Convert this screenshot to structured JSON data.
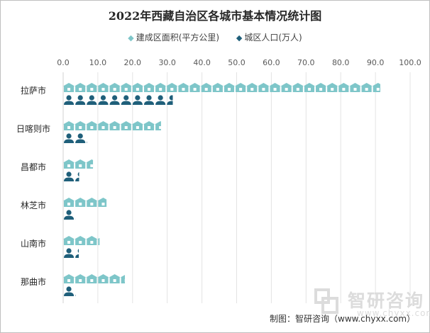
{
  "chart_data": {
    "type": "bar",
    "title": "2022年西藏自治区各城市基本情况统计图",
    "categories": [
      "拉萨市",
      "日喀则市",
      "昌都市",
      "林芝市",
      "山南市",
      "那曲市"
    ],
    "series": [
      {
        "name": "建成区面积(平方公里)",
        "values": [
          91.4,
          28.2,
          8.6,
          12.5,
          10.5,
          17.8
        ],
        "color": "#7ec6c9",
        "icon": "house-icon"
      },
      {
        "name": "城区人口(万人)",
        "values": [
          31.6,
          6.9,
          4.6,
          3.5,
          4.5,
          3.6
        ],
        "color": "#1f5f7a",
        "icon": "person-icon"
      }
    ],
    "xlim": [
      0,
      100
    ],
    "xticks": [
      "0.0",
      "10.0",
      "20.0",
      "30.0",
      "40.0",
      "50.0",
      "60.0",
      "70.0",
      "80.0",
      "90.0",
      "100.0"
    ],
    "grid": true,
    "legend_position": "top",
    "unit_per_icon": 3.3
  },
  "footer": {
    "source": "制图：智研咨询（www.chyxx.com）"
  },
  "watermark": {
    "brand": "智研咨询",
    "url": "www.chyxx.com"
  }
}
